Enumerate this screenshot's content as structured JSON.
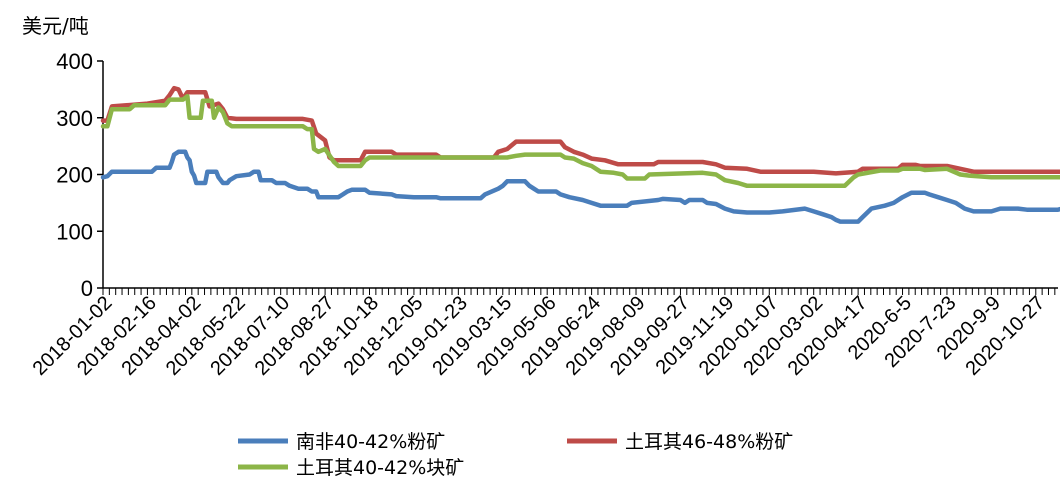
{
  "chart_data": {
    "type": "line",
    "unit_label": "美元/吨",
    "ylim": [
      0,
      400
    ],
    "yticks": [
      0,
      100,
      200,
      300,
      400
    ],
    "xtick_labels": [
      "2018-01-02",
      "2018-02-16",
      "2018-04-02",
      "2018-05-22",
      "2018-07-10",
      "2018-08-27",
      "2018-10-18",
      "2018-12-05",
      "2019-01-23",
      "2019-03-15",
      "2019-05-06",
      "2019-06-24",
      "2019-08-09",
      "2019-09-27",
      "2019-11-19",
      "2020-01-07",
      "2020-03-02",
      "2020-04-17",
      "2020-6-5",
      "2020-7-23",
      "2020-9-9",
      "2020-10-27"
    ],
    "grid": false,
    "legend_position": "bottom",
    "series": [
      {
        "name": "南非40-42%粉矿",
        "color": "#4a7ebb",
        "points": [
          [
            0,
            195
          ],
          [
            0.1,
            197
          ],
          [
            0.2,
            205
          ],
          [
            1.1,
            205
          ],
          [
            1.2,
            212
          ],
          [
            1.5,
            212
          ],
          [
            1.55,
            222
          ],
          [
            1.6,
            235
          ],
          [
            1.7,
            240
          ],
          [
            1.85,
            240
          ],
          [
            1.9,
            230
          ],
          [
            1.95,
            225
          ],
          [
            2,
            205
          ],
          [
            2.05,
            198
          ],
          [
            2.1,
            185
          ],
          [
            2.3,
            185
          ],
          [
            2.35,
            205
          ],
          [
            2.55,
            205
          ],
          [
            2.6,
            195
          ],
          [
            2.7,
            185
          ],
          [
            2.8,
            185
          ],
          [
            2.85,
            190
          ],
          [
            3.0,
            197
          ],
          [
            3.3,
            200
          ],
          [
            3.4,
            205
          ],
          [
            3.5,
            205
          ],
          [
            3.55,
            190
          ],
          [
            3.8,
            190
          ],
          [
            3.9,
            185
          ],
          [
            4.1,
            185
          ],
          [
            4.2,
            180
          ],
          [
            4.4,
            175
          ],
          [
            4.6,
            175
          ],
          [
            4.7,
            170
          ],
          [
            4.8,
            170
          ],
          [
            4.85,
            160
          ],
          [
            5.3,
            160
          ],
          [
            5.4,
            165
          ],
          [
            5.5,
            170
          ],
          [
            5.6,
            173
          ],
          [
            5.9,
            173
          ],
          [
            6.0,
            168
          ],
          [
            6.5,
            165
          ],
          [
            6.6,
            162
          ],
          [
            7.0,
            160
          ],
          [
            7.5,
            160
          ],
          [
            7.6,
            158
          ],
          [
            8.5,
            158
          ],
          [
            8.6,
            165
          ],
          [
            8.9,
            175
          ],
          [
            9.0,
            180
          ],
          [
            9.1,
            188
          ],
          [
            9.5,
            188
          ],
          [
            9.6,
            180
          ],
          [
            9.7,
            175
          ],
          [
            9.8,
            170
          ],
          [
            10.2,
            170
          ],
          [
            10.3,
            165
          ],
          [
            10.5,
            160
          ],
          [
            10.8,
            155
          ],
          [
            11.0,
            150
          ],
          [
            11.2,
            145
          ],
          [
            11.5,
            145
          ],
          [
            11.8,
            145
          ],
          [
            11.9,
            150
          ],
          [
            12.5,
            155
          ],
          [
            12.6,
            157
          ],
          [
            13.0,
            155
          ],
          [
            13.1,
            150
          ],
          [
            13.2,
            155
          ],
          [
            13.5,
            155
          ],
          [
            13.6,
            150
          ],
          [
            13.8,
            148
          ],
          [
            14.0,
            140
          ],
          [
            14.2,
            135
          ],
          [
            14.5,
            133
          ],
          [
            15.0,
            133
          ],
          [
            15.3,
            135
          ],
          [
            15.8,
            140
          ],
          [
            16.0,
            135
          ],
          [
            16.2,
            130
          ],
          [
            16.4,
            125
          ],
          [
            16.5,
            120
          ],
          [
            16.6,
            117
          ],
          [
            17.0,
            117
          ],
          [
            17.1,
            125
          ],
          [
            17.3,
            140
          ],
          [
            17.6,
            145
          ],
          [
            17.8,
            150
          ],
          [
            18.0,
            160
          ],
          [
            18.2,
            168
          ],
          [
            18.5,
            168
          ],
          [
            18.6,
            165
          ],
          [
            18.8,
            160
          ],
          [
            19.0,
            155
          ],
          [
            19.2,
            150
          ],
          [
            19.4,
            140
          ],
          [
            19.6,
            135
          ],
          [
            20.0,
            135
          ],
          [
            20.2,
            140
          ],
          [
            20.6,
            140
          ],
          [
            20.8,
            138
          ],
          [
            21.2,
            138
          ],
          [
            21.5,
            138
          ],
          [
            21.6,
            140
          ],
          [
            21.7,
            140
          ]
        ]
      },
      {
        "name": "土耳其46-48%粉矿",
        "color": "#be4b48",
        "points": [
          [
            0,
            295
          ],
          [
            0.1,
            295
          ],
          [
            0.2,
            320
          ],
          [
            1.0,
            325
          ],
          [
            1.4,
            330
          ],
          [
            1.5,
            340
          ],
          [
            1.6,
            352
          ],
          [
            1.7,
            350
          ],
          [
            1.8,
            333
          ],
          [
            1.9,
            345
          ],
          [
            2.3,
            345
          ],
          [
            2.4,
            320
          ],
          [
            2.6,
            325
          ],
          [
            2.7,
            315
          ],
          [
            2.8,
            300
          ],
          [
            3.0,
            298
          ],
          [
            3.5,
            298
          ],
          [
            4.5,
            298
          ],
          [
            4.7,
            295
          ],
          [
            4.8,
            272
          ],
          [
            5.0,
            260
          ],
          [
            5.1,
            230
          ],
          [
            5.2,
            225
          ],
          [
            5.8,
            225
          ],
          [
            5.9,
            240
          ],
          [
            6.5,
            240
          ],
          [
            6.6,
            235
          ],
          [
            7.5,
            235
          ],
          [
            7.6,
            230
          ],
          [
            8.8,
            230
          ],
          [
            8.9,
            240
          ],
          [
            9.1,
            245
          ],
          [
            9.3,
            258
          ],
          [
            10.3,
            258
          ],
          [
            10.4,
            248
          ],
          [
            10.6,
            240
          ],
          [
            10.8,
            235
          ],
          [
            11.0,
            228
          ],
          [
            11.3,
            225
          ],
          [
            11.6,
            218
          ],
          [
            12.0,
            218
          ],
          [
            12.4,
            218
          ],
          [
            12.5,
            222
          ],
          [
            13.5,
            222
          ],
          [
            13.8,
            218
          ],
          [
            14.0,
            212
          ],
          [
            14.5,
            210
          ],
          [
            14.8,
            205
          ],
          [
            15.5,
            205
          ],
          [
            16.0,
            205
          ],
          [
            16.5,
            202
          ],
          [
            17.0,
            205
          ],
          [
            17.1,
            210
          ],
          [
            17.5,
            210
          ],
          [
            17.9,
            210
          ],
          [
            18.0,
            217
          ],
          [
            18.3,
            217
          ],
          [
            18.4,
            215
          ],
          [
            19.0,
            215
          ],
          [
            19.3,
            210
          ],
          [
            19.6,
            205
          ],
          [
            20.0,
            205
          ],
          [
            21.7,
            205
          ]
        ]
      },
      {
        "name": "土耳其40-42%块矿",
        "color": "#8cb548",
        "points": [
          [
            0,
            285
          ],
          [
            0.1,
            285
          ],
          [
            0.2,
            315
          ],
          [
            0.6,
            315
          ],
          [
            0.7,
            322
          ],
          [
            1.4,
            322
          ],
          [
            1.5,
            332
          ],
          [
            1.8,
            332
          ],
          [
            1.9,
            338
          ],
          [
            1.95,
            300
          ],
          [
            2.2,
            300
          ],
          [
            2.25,
            330
          ],
          [
            2.45,
            330
          ],
          [
            2.5,
            300
          ],
          [
            2.6,
            318
          ],
          [
            2.7,
            310
          ],
          [
            2.8,
            290
          ],
          [
            2.9,
            285
          ],
          [
            4.5,
            285
          ],
          [
            4.6,
            280
          ],
          [
            4.7,
            280
          ],
          [
            4.75,
            245
          ],
          [
            4.85,
            240
          ],
          [
            5.0,
            245
          ],
          [
            5.2,
            222
          ],
          [
            5.3,
            215
          ],
          [
            5.8,
            215
          ],
          [
            5.9,
            225
          ],
          [
            6.0,
            230
          ],
          [
            6.5,
            230
          ],
          [
            7.5,
            230
          ],
          [
            8.8,
            230
          ],
          [
            9.1,
            230
          ],
          [
            9.3,
            233
          ],
          [
            9.5,
            235
          ],
          [
            10.3,
            235
          ],
          [
            10.4,
            230
          ],
          [
            10.6,
            228
          ],
          [
            10.8,
            220
          ],
          [
            11.0,
            215
          ],
          [
            11.2,
            205
          ],
          [
            11.5,
            203
          ],
          [
            11.7,
            200
          ],
          [
            11.8,
            193
          ],
          [
            12.2,
            193
          ],
          [
            12.3,
            200
          ],
          [
            13.5,
            203
          ],
          [
            13.8,
            200
          ],
          [
            14.0,
            190
          ],
          [
            14.3,
            185
          ],
          [
            14.5,
            180
          ],
          [
            15.0,
            180
          ],
          [
            16.5,
            180
          ],
          [
            16.7,
            180
          ],
          [
            16.9,
            195
          ],
          [
            17.0,
            200
          ],
          [
            17.5,
            207
          ],
          [
            17.9,
            207
          ],
          [
            18.0,
            210
          ],
          [
            18.4,
            210
          ],
          [
            18.5,
            208
          ],
          [
            19.0,
            210
          ],
          [
            19.3,
            200
          ],
          [
            19.5,
            198
          ],
          [
            20.0,
            195
          ],
          [
            21.7,
            195
          ]
        ]
      }
    ]
  }
}
